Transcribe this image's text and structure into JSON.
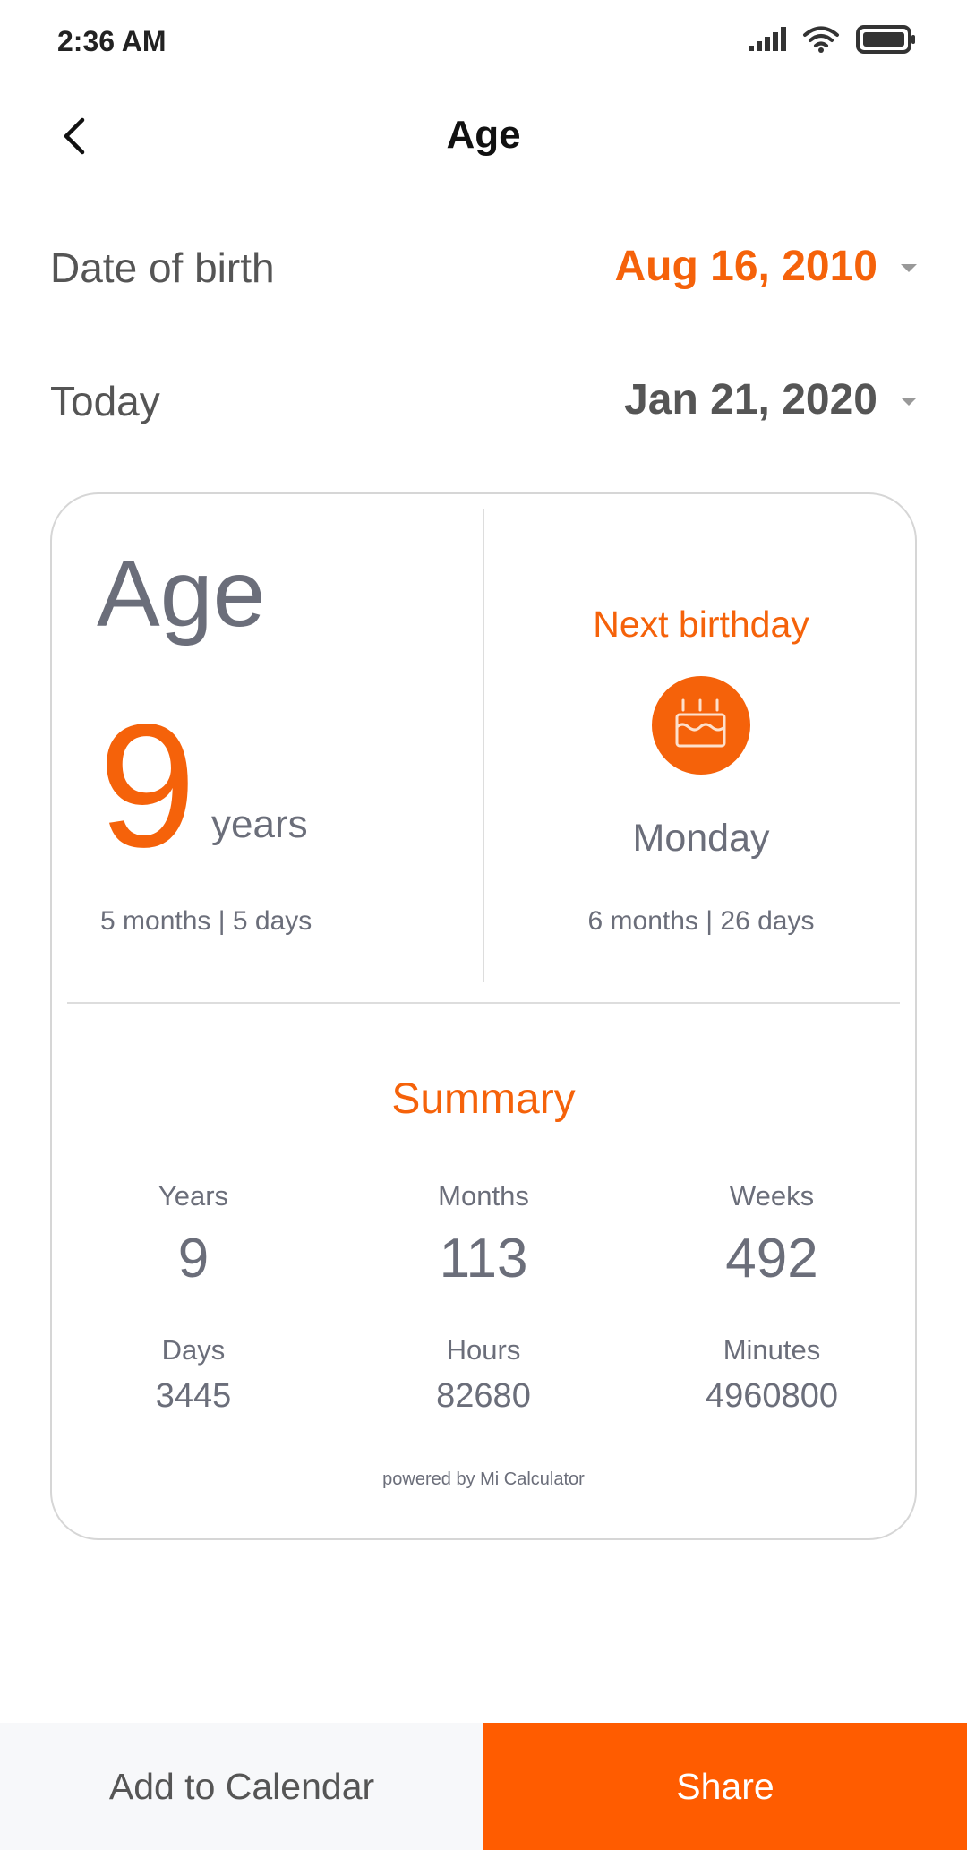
{
  "status_bar": {
    "time": "2:36 AM",
    "icons": [
      "signal-icon",
      "wifi-icon",
      "battery-icon"
    ]
  },
  "header": {
    "title": "Age",
    "back_icon": "chevron-left-icon"
  },
  "inputs": {
    "dob_label": "Date of birth",
    "dob_value": "Aug 16, 2010",
    "today_label": "Today",
    "today_value": "Jan 21, 2020"
  },
  "card": {
    "age_title": "Age",
    "age_years": "9",
    "years_unit": "years",
    "age_remainder": "5 months | 5 days",
    "next_birthday_title": "Next birthday",
    "next_birthday_icon": "birthday-cake-icon",
    "next_birthday_weekday": "Monday",
    "next_birthday_countdown": "6 months | 26 days",
    "summary_title": "Summary",
    "summary": [
      {
        "label": "Years",
        "value": "9"
      },
      {
        "label": "Months",
        "value": "113"
      },
      {
        "label": "Weeks",
        "value": "492"
      },
      {
        "label": "Days",
        "value": "3445"
      },
      {
        "label": "Hours",
        "value": "82680"
      },
      {
        "label": "Minutes",
        "value": "4960800"
      }
    ],
    "powered_by": "powered by Mi Calculator"
  },
  "footer": {
    "add_to_calendar": "Add to Calendar",
    "share": "Share"
  },
  "colors": {
    "accent": "#f5620a",
    "share_bg": "#ff5c00",
    "secondary_bg": "#f7f8fa"
  }
}
